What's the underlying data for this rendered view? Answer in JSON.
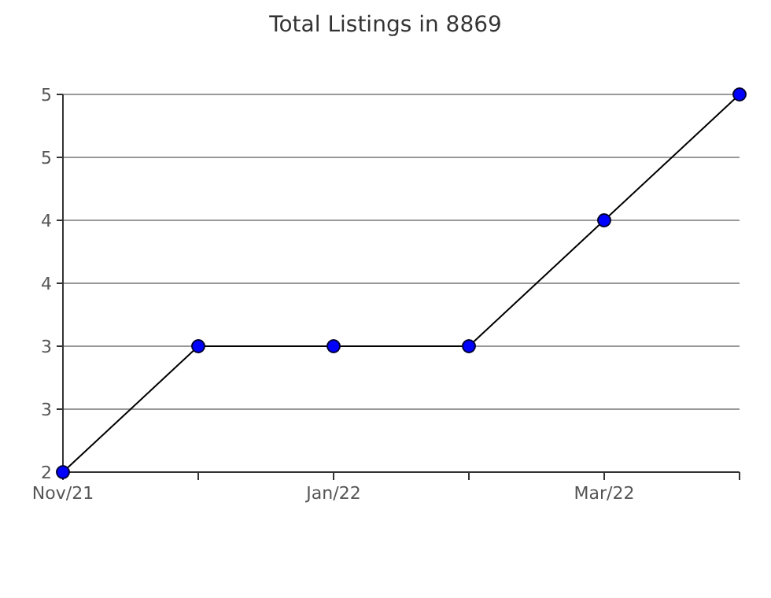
{
  "chart_data": {
    "type": "line",
    "title": "Total Listings in 8869",
    "categories": [
      "Nov/21",
      null,
      "Jan/22",
      null,
      "Mar/22",
      null
    ],
    "series": [
      {
        "color": "#0000ff",
        "values": [
          2,
          3,
          3,
          3,
          4,
          5
        ]
      }
    ],
    "ylim": [
      2,
      5
    ],
    "yticks": [
      2,
      {
        "value": 2.5,
        "label": "3"
      },
      3,
      {
        "value": 3.5,
        "label": "4"
      },
      4,
      {
        "value": 4.5,
        "label": "5"
      },
      5
    ],
    "grid": "y",
    "marker": "circle",
    "line_style": "solid"
  }
}
